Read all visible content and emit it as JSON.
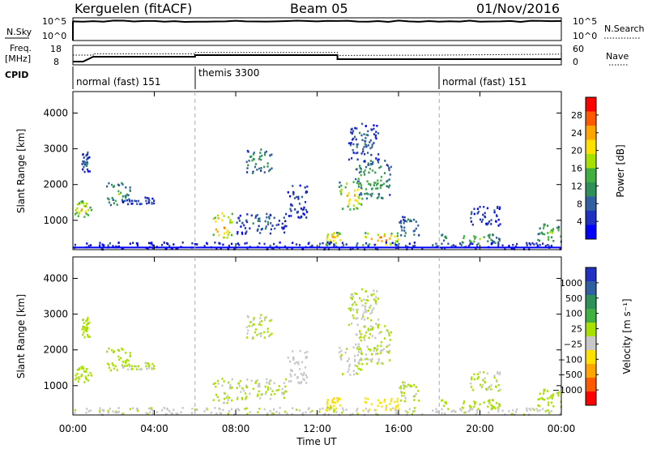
{
  "header": {
    "station": "Kerguelen (fitACF)",
    "beam": "Beam 05",
    "date": "01/Nov/2016"
  },
  "nsky_panel": {
    "left_label": "N.Sky",
    "left_ticks": [
      "10^5",
      "10^0"
    ],
    "right_label": "N.Search",
    "right_ticks": [
      "10^5",
      "10^0"
    ]
  },
  "freq_panel": {
    "left_label_1": "Freq.",
    "left_label_2": "[MHz]",
    "left_ticks": [
      "18",
      "8"
    ],
    "right_label": "Nave",
    "right_ticks": [
      "60",
      "0"
    ]
  },
  "cpid_panel": {
    "label": "CPID",
    "segments": [
      {
        "name": "normal (fast) 151",
        "start_hour": 0,
        "end_hour": 6
      },
      {
        "name": "themis 3300",
        "start_hour": 6,
        "end_hour": 18
      },
      {
        "name": "normal (fast) 151",
        "start_hour": 18,
        "end_hour": 24
      }
    ]
  },
  "power_panel": {
    "ylabel": "Slant Range [km]",
    "colorbar_label": "Power [dB]",
    "colorbar_ticks": [
      "28",
      "24",
      "20",
      "16",
      "12",
      "8",
      "4"
    ],
    "colorbar_colors": [
      "#ff0000",
      "#ff5a00",
      "#ffa500",
      "#ffe000",
      "#a8e000",
      "#40b040",
      "#30905a",
      "#3060a0",
      "#2030c0",
      "#0000ff"
    ]
  },
  "velocity_panel": {
    "ylabel": "Slant Range [km]",
    "colorbar_label": "Velocity [m s⁻¹]",
    "colorbar_ticks": [
      "1000",
      "500",
      "100",
      "25",
      "−25",
      "−100",
      "−500",
      "−1000"
    ],
    "colorbar_colors": [
      "#2030c0",
      "#3060a0",
      "#30905a",
      "#40b040",
      "#a8e000",
      "#c8c8c8",
      "#ffe000",
      "#ffa500",
      "#ff5a00",
      "#ff0000"
    ]
  },
  "xaxis": {
    "label": "Time UT",
    "ticks": [
      "00:00",
      "04:00",
      "08:00",
      "12:00",
      "16:00",
      "20:00",
      "00:00"
    ]
  },
  "chart_data": {
    "type": "heatmap",
    "x_range_hours": [
      0,
      24
    ],
    "y_range_km": [
      180,
      4600
    ],
    "y_ticks_km": [
      1000,
      2000,
      3000,
      4000
    ],
    "x_tick_hours": [
      0,
      4,
      8,
      12,
      16,
      20,
      24
    ],
    "power_range_db": [
      0,
      32
    ],
    "velocity_range_ms": [
      -1200,
      1200
    ],
    "frequency_mhz": [
      [
        0,
        8
      ],
      [
        0.5,
        8
      ],
      [
        1.0,
        11
      ],
      [
        6.0,
        11
      ],
      [
        6.0,
        12
      ],
      [
        13.0,
        12
      ],
      [
        13.0,
        9.5
      ],
      [
        24,
        9.5
      ]
    ],
    "nave": [
      [
        0,
        30
      ],
      [
        1.0,
        30
      ],
      [
        1.0,
        34
      ],
      [
        6.0,
        34
      ],
      [
        6.0,
        38
      ],
      [
        13.0,
        38
      ],
      [
        13.0,
        29
      ],
      [
        18,
        30
      ],
      [
        24,
        33
      ]
    ],
    "nsky_level": 0.85,
    "patches": [
      {
        "t0": 0.0,
        "t1": 0.9,
        "r0": 1050,
        "r1": 1550,
        "power": 20,
        "velocity": 150
      },
      {
        "t0": 0.4,
        "t1": 0.8,
        "r0": 2350,
        "r1": 2900,
        "power": 8,
        "velocity": 60
      },
      {
        "t0": 1.6,
        "t1": 2.8,
        "r0": 1400,
        "r1": 2050,
        "power": 14,
        "velocity": 120
      },
      {
        "t0": 2.4,
        "t1": 4.0,
        "r0": 1450,
        "r1": 1650,
        "power": 6,
        "velocity": 10
      },
      {
        "t0": 6.8,
        "t1": 7.8,
        "r0": 500,
        "r1": 1200,
        "power": 26,
        "velocity": 10
      },
      {
        "t0": 8.5,
        "t1": 9.8,
        "r0": 2300,
        "r1": 3000,
        "power": 12,
        "velocity": 20
      },
      {
        "t0": 8.0,
        "t1": 10.5,
        "r0": 600,
        "r1": 1200,
        "power": 8,
        "velocity": 0
      },
      {
        "t0": 10.5,
        "t1": 11.5,
        "r0": 1000,
        "r1": 2000,
        "power": 6,
        "velocity": -150
      },
      {
        "t0": 13.0,
        "t1": 14.2,
        "r0": 1300,
        "r1": 2100,
        "power": 22,
        "velocity": 0
      },
      {
        "t0": 13.8,
        "t1": 15.6,
        "r0": 1600,
        "r1": 2700,
        "power": 14,
        "velocity": 10
      },
      {
        "t0": 13.5,
        "t1": 15.0,
        "r0": 2600,
        "r1": 3700,
        "power": 8,
        "velocity": 0
      },
      {
        "t0": 12.4,
        "t1": 13.2,
        "r0": 300,
        "r1": 650,
        "power": 24,
        "velocity": -300
      },
      {
        "t0": 14.1,
        "t1": 16.0,
        "r0": 300,
        "r1": 650,
        "power": 26,
        "velocity": -300
      },
      {
        "t0": 16.0,
        "t1": 17.0,
        "r0": 500,
        "r1": 1100,
        "power": 10,
        "velocity": 20
      },
      {
        "t0": 18.0,
        "t1": 21.0,
        "r0": 320,
        "r1": 620,
        "power": 14,
        "velocity": 150
      },
      {
        "t0": 19.5,
        "t1": 21.0,
        "r0": 800,
        "r1": 1400,
        "power": 6,
        "velocity": 10
      },
      {
        "t0": 22.8,
        "t1": 24.0,
        "r0": 400,
        "r1": 900,
        "power": 16,
        "velocity": 120
      },
      {
        "t0": 0.0,
        "t1": 24.0,
        "r0": 180,
        "r1": 380,
        "power": 6,
        "velocity": -40
      }
    ]
  }
}
